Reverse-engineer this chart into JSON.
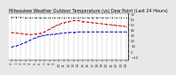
{
  "title": "Milwaukee Weather Outdoor Temperature (vs) Dew Point (Last 24 Hours)",
  "background_color": "#e8e8e8",
  "plot_bg_color": "#ffffff",
  "ylim": [
    -15,
    70
  ],
  "yticks": [
    70,
    60,
    50,
    40,
    30,
    20,
    10,
    0,
    -10
  ],
  "n_points": 25,
  "time_labels": [
    "0",
    "1",
    "2",
    "3",
    "4",
    "5",
    "6",
    "7",
    "8",
    "9",
    "10",
    "11",
    "12",
    "13",
    "14",
    "15",
    "16",
    "17",
    "18",
    "19",
    "20",
    "21",
    "22",
    "23",
    "24"
  ],
  "outdoor_temp": [
    35,
    34,
    33,
    32,
    31,
    32,
    33,
    36,
    41,
    46,
    50,
    53,
    55,
    57,
    57,
    55,
    54,
    53,
    52,
    51,
    50,
    49,
    48,
    47,
    46
  ],
  "dew_point": [
    8,
    10,
    13,
    17,
    21,
    25,
    28,
    30,
    31,
    32,
    33,
    34,
    35,
    35,
    36,
    36,
    36,
    36,
    36,
    36,
    36,
    36,
    36,
    36,
    36
  ],
  "indoor_temp": [
    63,
    63,
    63,
    62,
    62,
    62,
    62,
    62,
    62,
    62,
    62,
    62,
    62,
    62,
    62,
    62,
    62,
    62,
    62,
    62,
    62,
    62,
    62,
    62,
    62
  ],
  "outdoor_color": "#cc0000",
  "dew_color": "#0000cc",
  "indoor_color": "#000000",
  "grid_color": "#999999",
  "tick_color": "#333333",
  "title_fontsize": 3.5,
  "tick_fontsize": 2.8,
  "line_width": 0.7,
  "marker_size": 1.2,
  "grid_linewidth": 0.3,
  "grid_linestyle": "--"
}
